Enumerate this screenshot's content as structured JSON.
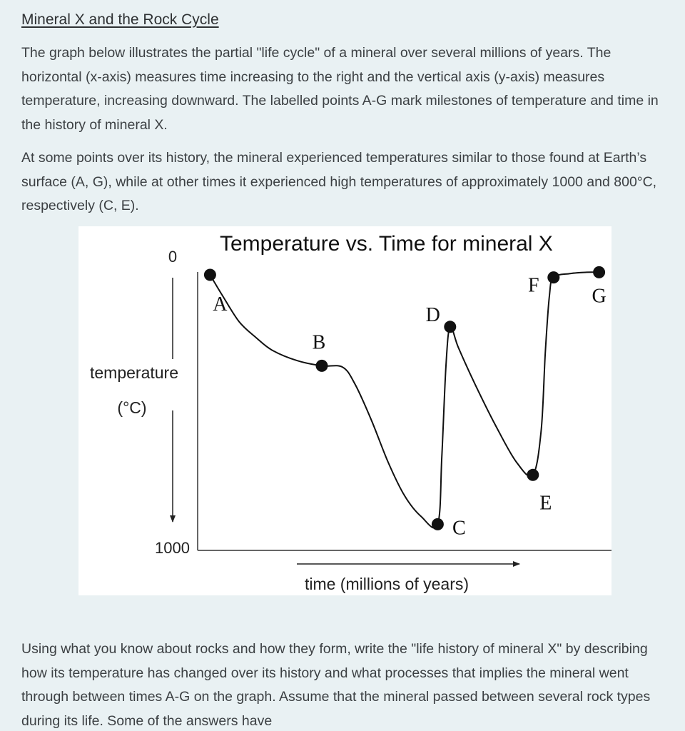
{
  "heading": "Mineral X and the Rock Cycle",
  "paragraph_1": "The graph below illustrates the partial \"life cycle\" of a mineral over several millions of years. The horizontal (x-axis) measures time increasing to the right and the vertical axis (y-axis) measures temperature, increasing downward. The labelled points A-G mark milestones of temperature and time in the history of mineral X.",
  "paragraph_2": "At some points over its history, the mineral experienced temperatures similar to those found at Earth’s surface (A, G), while at other times it experienced high temperatures of approximately 1000 and 800°C, respectively (C, E).",
  "paragraph_3": "Using what you know about rocks and how they form, write the \"life history of mineral X\" by describing how its temperature has changed over its history and what processes that implies the mineral went through between times A-G on the graph. Assume that the mineral passed between several rock types during its life. Some of the answers have",
  "chart_data": {
    "type": "line",
    "title": "Temperature vs. Time for mineral X",
    "xlabel": "time (millions of years)",
    "ylabel_line1": "temperature",
    "ylabel_line2": "(°C)",
    "y_tick_top": "0",
    "y_tick_bottom": "1000",
    "ylim": [
      0,
      1000
    ],
    "y_inverted": true,
    "xlim": [
      0,
      100
    ],
    "points": [
      {
        "label": "A",
        "x": 3,
        "y": 0
      },
      {
        "label": "B",
        "x": 30,
        "y": 350
      },
      {
        "label": "C",
        "x": 58,
        "y": 960
      },
      {
        "label": "D",
        "x": 61,
        "y": 200
      },
      {
        "label": "E",
        "x": 81,
        "y": 770
      },
      {
        "label": "F",
        "x": 86,
        "y": 10
      },
      {
        "label": "G",
        "x": 97,
        "y": -10
      }
    ],
    "curve": [
      [
        3,
        0
      ],
      [
        6,
        80
      ],
      [
        10,
        180
      ],
      [
        14,
        240
      ],
      [
        18,
        290
      ],
      [
        24,
        330
      ],
      [
        30,
        350
      ],
      [
        35,
        355
      ],
      [
        38,
        420
      ],
      [
        42,
        560
      ],
      [
        46,
        720
      ],
      [
        50,
        850
      ],
      [
        54,
        930
      ],
      [
        58,
        960
      ],
      [
        59,
        700
      ],
      [
        60,
        350
      ],
      [
        61,
        200
      ],
      [
        63,
        280
      ],
      [
        67,
        420
      ],
      [
        72,
        580
      ],
      [
        77,
        720
      ],
      [
        81,
        770
      ],
      [
        83,
        600
      ],
      [
        84,
        300
      ],
      [
        85,
        80
      ],
      [
        86,
        10
      ],
      [
        90,
        -5
      ],
      [
        94,
        -10
      ],
      [
        97,
        -10
      ]
    ]
  }
}
